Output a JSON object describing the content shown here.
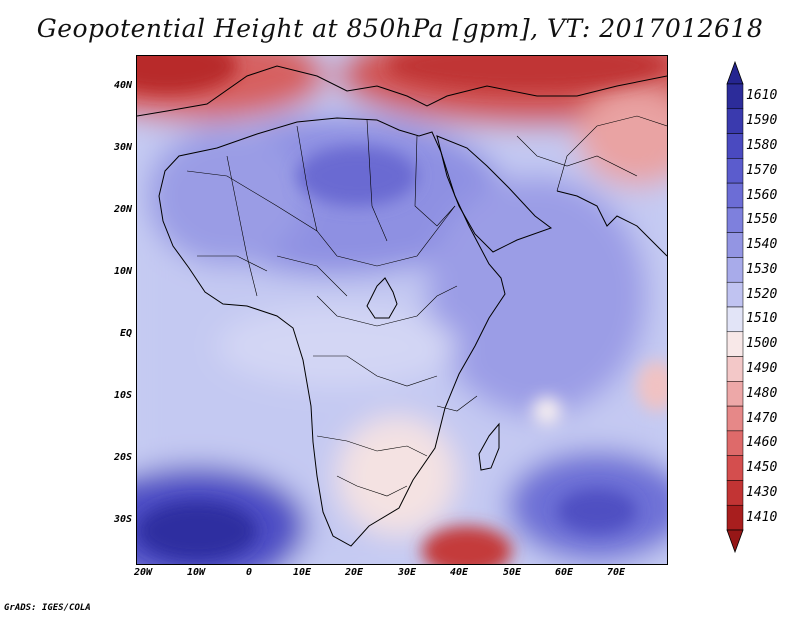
{
  "title": "Geopotential Height at 850hPa [gpm], VT: 2017012618",
  "credit": "GrADS: IGES/COLA",
  "map": {
    "region": "Africa",
    "lon_range": [
      -25,
      80
    ],
    "lat_range": [
      -37,
      45
    ],
    "y_ticks": [
      "40N",
      "30N",
      "20N",
      "10N",
      "EQ",
      "10S",
      "20S",
      "30S"
    ],
    "x_ticks": [
      "20W",
      "10W",
      "0",
      "10E",
      "20E",
      "30E",
      "40E",
      "50E",
      "60E",
      "70E"
    ]
  },
  "colorbar": {
    "labels": [
      "1610",
      "1590",
      "1580",
      "1570",
      "1560",
      "1550",
      "1540",
      "1530",
      "1520",
      "1510",
      "1500",
      "1490",
      "1480",
      "1470",
      "1460",
      "1450",
      "1430",
      "1410"
    ],
    "colors": [
      "#2c2c9a",
      "#3a3aae",
      "#4a4ac0",
      "#5b5ccd",
      "#6c6dd6",
      "#7e80dd",
      "#9395e3",
      "#a8abea",
      "#c0c3f1",
      "#e2e4f7",
      "#f8e8e8",
      "#f3c8c8",
      "#eda8a8",
      "#e68888",
      "#de6a6a",
      "#d44e4e",
      "#c23434",
      "#a81e1e"
    ],
    "top_color": "#252590",
    "bottom_color": "#961717"
  }
}
